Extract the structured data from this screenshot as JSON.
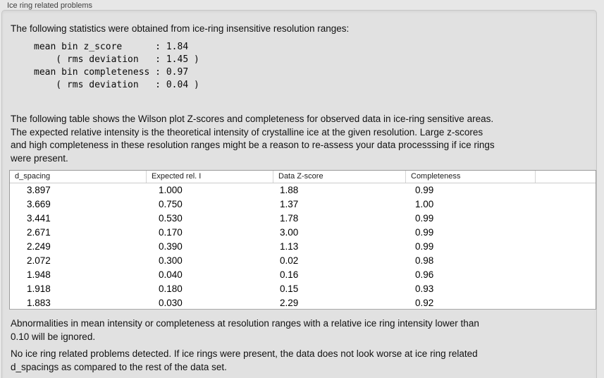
{
  "panel": {
    "title": "Ice ring related problems"
  },
  "intro": "The following statistics were obtained from ice-ring insensitive resolution ranges:",
  "stats_block": "mean bin z_score      : 1.84\n    ( rms deviation   : 1.45 )\nmean bin completeness : 0.97\n    ( rms deviation   : 0.04 )",
  "description": "The following table shows the Wilson plot Z-scores and completeness for observed data in ice-ring sensitive areas.\nThe expected relative intensity is the theoretical intensity of crystalline ice at the given resolution. Large z-scores\nand high completeness in these resolution ranges might be a reason to re-assess your data processsing if ice rings\nwere present.",
  "table": {
    "headers": [
      "d_spacing",
      "Expected rel. I",
      "Data Z-score",
      "Completeness",
      ""
    ],
    "rows": [
      [
        "3.897",
        "1.000",
        "1.88",
        "0.99"
      ],
      [
        "3.669",
        "0.750",
        "1.37",
        "1.00"
      ],
      [
        "3.441",
        "0.530",
        "1.78",
        "0.99"
      ],
      [
        "2.671",
        "0.170",
        "3.00",
        "0.99"
      ],
      [
        "2.249",
        "0.390",
        "1.13",
        "0.99"
      ],
      [
        "2.072",
        "0.300",
        "0.02",
        "0.98"
      ],
      [
        "1.948",
        "0.040",
        "0.16",
        "0.96"
      ],
      [
        "1.918",
        "0.180",
        "0.15",
        "0.93"
      ],
      [
        "1.883",
        "0.030",
        "2.29",
        "0.92"
      ]
    ]
  },
  "notes": {
    "ignore_threshold": "Abnormalities in mean intensity or completeness at resolution ranges with a relative ice ring intensity lower than\n0.10 will be ignored.",
    "conclusion": "No ice ring related problems detected. If ice rings were present, the data does not look worse at ice ring related\nd_spacings as compared to the rest of the data set."
  }
}
